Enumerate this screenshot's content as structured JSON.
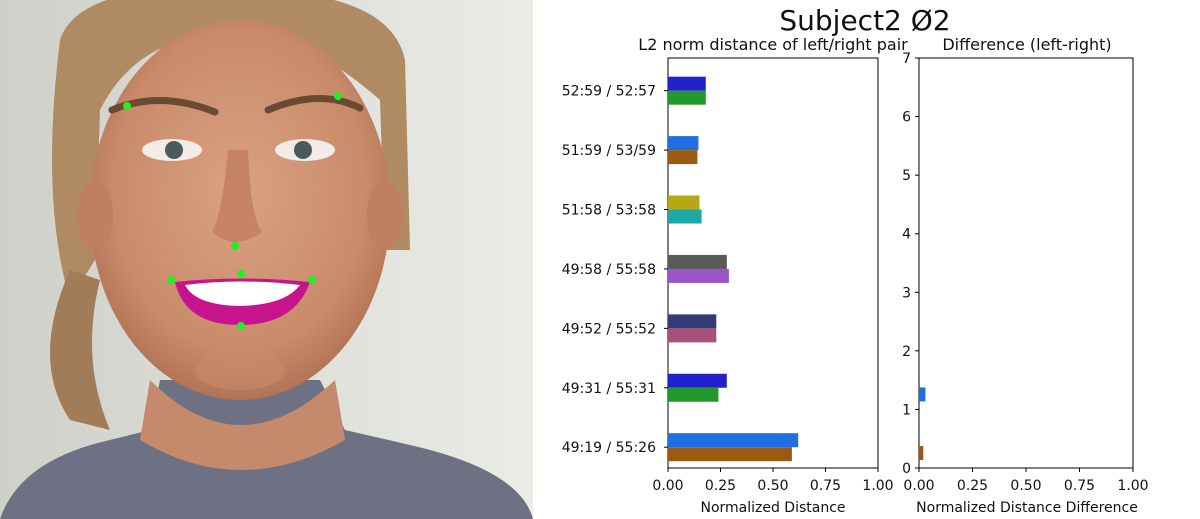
{
  "chart_data": [
    {
      "type": "bar",
      "orientation": "horizontal",
      "title": "L2 norm distance of left/right pair",
      "xlabel": "Normalized Distance",
      "xlim": [
        0,
        1.0
      ],
      "x_ticks": [
        "0.00",
        "0.25",
        "0.50",
        "0.75",
        "1.00"
      ],
      "categories": [
        "49:19 / 55:26",
        "49:31 / 55:31",
        "49:52 / 55:52",
        "49:58 / 55:58",
        "51:58 / 53:58",
        "51:59 / 53/59",
        "52:59 / 52:57"
      ],
      "pairs": [
        {
          "category": "49:19 / 55:26",
          "left": 0.62,
          "right": 0.59,
          "left_color": "#1f6fe0",
          "right_color": "#9a5a12"
        },
        {
          "category": "49:31 / 55:31",
          "left": 0.28,
          "right": 0.24,
          "left_color": "#2222cc",
          "right_color": "#22992a"
        },
        {
          "category": "49:52 / 55:52",
          "left": 0.23,
          "right": 0.23,
          "left_color": "#333a78",
          "right_color": "#a8507a"
        },
        {
          "category": "49:58 / 55:58",
          "left": 0.28,
          "right": 0.29,
          "left_color": "#5a5a5a",
          "right_color": "#9a55c8"
        },
        {
          "category": "51:58 / 53:58",
          "left": 0.15,
          "right": 0.16,
          "left_color": "#b4a814",
          "right_color": "#1ea7a7"
        },
        {
          "category": "51:59 / 53/59",
          "left": 0.145,
          "right": 0.14,
          "left_color": "#1f6fe0",
          "right_color": "#9a5a12"
        },
        {
          "category": "52:59 / 52:57",
          "left": 0.18,
          "right": 0.18,
          "left_color": "#2222cc",
          "right_color": "#22992a"
        }
      ]
    },
    {
      "type": "bar",
      "orientation": "horizontal",
      "title": "Difference (left-right)",
      "xlabel": "Normalized Distance Difference",
      "xlim": [
        0,
        1.0
      ],
      "ylim": [
        0,
        7
      ],
      "x_ticks": [
        "0.00",
        "0.25",
        "0.50",
        "0.75",
        "1.00"
      ],
      "y_ticks": [
        "0",
        "1",
        "2",
        "3",
        "4",
        "5",
        "6",
        "7"
      ],
      "bars": [
        {
          "y": 0.0,
          "value": 0.02,
          "color": "#9a5a12"
        },
        {
          "y": 1.0,
          "value": 0.03,
          "color": "#1f6fe0"
        }
      ]
    }
  ],
  "suptitle": "Subject2 Ø2",
  "colors": {
    "landmark": "#22ee22",
    "lip_overlay": "#c8148c",
    "background_wall": "#dedfd8",
    "shirt": "#6e7184"
  },
  "photo": {
    "landmarks": [
      {
        "name": "left-brow-landmark"
      },
      {
        "name": "right-brow-landmark"
      },
      {
        "name": "nose-tip-landmark"
      },
      {
        "name": "upper-lip-landmark"
      },
      {
        "name": "left-mouth-corner-landmark"
      },
      {
        "name": "right-mouth-corner-landmark"
      },
      {
        "name": "lower-lip-landmark"
      }
    ]
  }
}
